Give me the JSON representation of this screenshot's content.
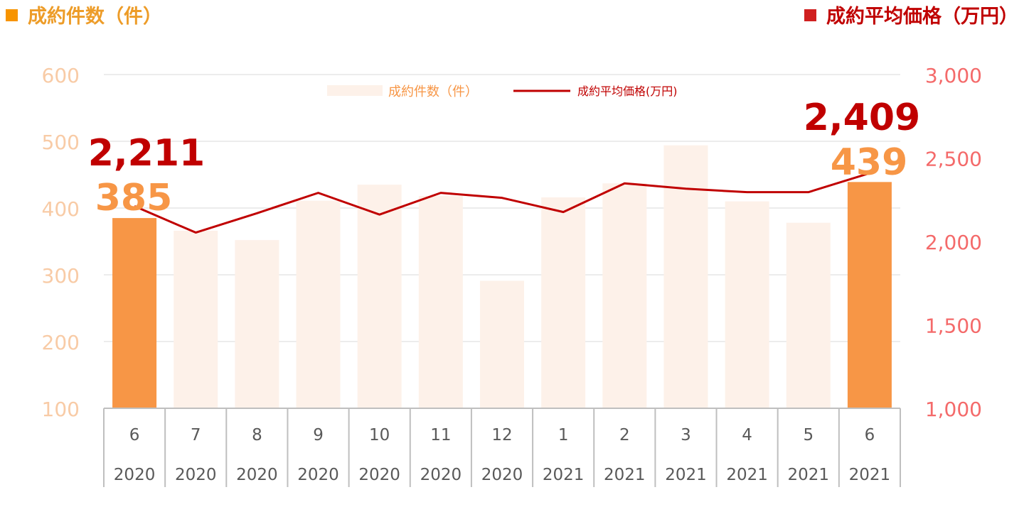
{
  "title_left": "成約件数（件）",
  "title_right": "成約平均価格（万円）",
  "colors": {
    "bar_highlight": "#F79646",
    "bar_faded": "#FDF1E9",
    "line": "#C00000",
    "left_axis_text": "#F8CBA6",
    "right_axis_text": "#F46A6A",
    "grid": "#D9D9D9",
    "category_text": "#595959",
    "callout_count": "#F79646",
    "callout_price": "#C00000",
    "legend_bar_text": "#F79646",
    "legend_line_text": "#C00000"
  },
  "chart_data": {
    "type": "bar",
    "categories": [
      {
        "month": "6",
        "year": "2020"
      },
      {
        "month": "7",
        "year": "2020"
      },
      {
        "month": "8",
        "year": "2020"
      },
      {
        "month": "9",
        "year": "2020"
      },
      {
        "month": "10",
        "year": "2020"
      },
      {
        "month": "11",
        "year": "2020"
      },
      {
        "month": "12",
        "year": "2020"
      },
      {
        "month": "1",
        "year": "2021"
      },
      {
        "month": "2",
        "year": "2021"
      },
      {
        "month": "3",
        "year": "2021"
      },
      {
        "month": "4",
        "year": "2021"
      },
      {
        "month": "5",
        "year": "2021"
      },
      {
        "month": "6",
        "year": "2021"
      }
    ],
    "series": [
      {
        "name": "成約件数（件）",
        "type": "bar",
        "axis": "left",
        "values": [
          385,
          366,
          352,
          411,
          435,
          418,
          291,
          416,
          437,
          494,
          410,
          378,
          439
        ],
        "highlighted": [
          0,
          12
        ]
      },
      {
        "name": "成約平均価格(万円)",
        "type": "line",
        "axis": "right",
        "values": [
          2211,
          2053,
          2169,
          2291,
          2161,
          2291,
          2261,
          2176,
          2348,
          2316,
          2295,
          2295,
          2409
        ]
      }
    ],
    "left_axis": {
      "min": 100,
      "max": 600,
      "ticks": [
        "100",
        "200",
        "300",
        "400",
        "500",
        "600"
      ]
    },
    "right_axis": {
      "min": 1000,
      "max": 3000,
      "ticks": [
        "1,000",
        "1,500",
        "2,000",
        "2,500",
        "3,000"
      ]
    },
    "grid": true,
    "legend": {
      "position": "top-center",
      "bar_label": "成約件数（件）",
      "line_label": "成約平均価格(万円)"
    },
    "callouts": [
      {
        "price": "2,211",
        "count": "385",
        "category_index": 0
      },
      {
        "price": "2,409",
        "count": "439",
        "category_index": 12
      }
    ]
  }
}
